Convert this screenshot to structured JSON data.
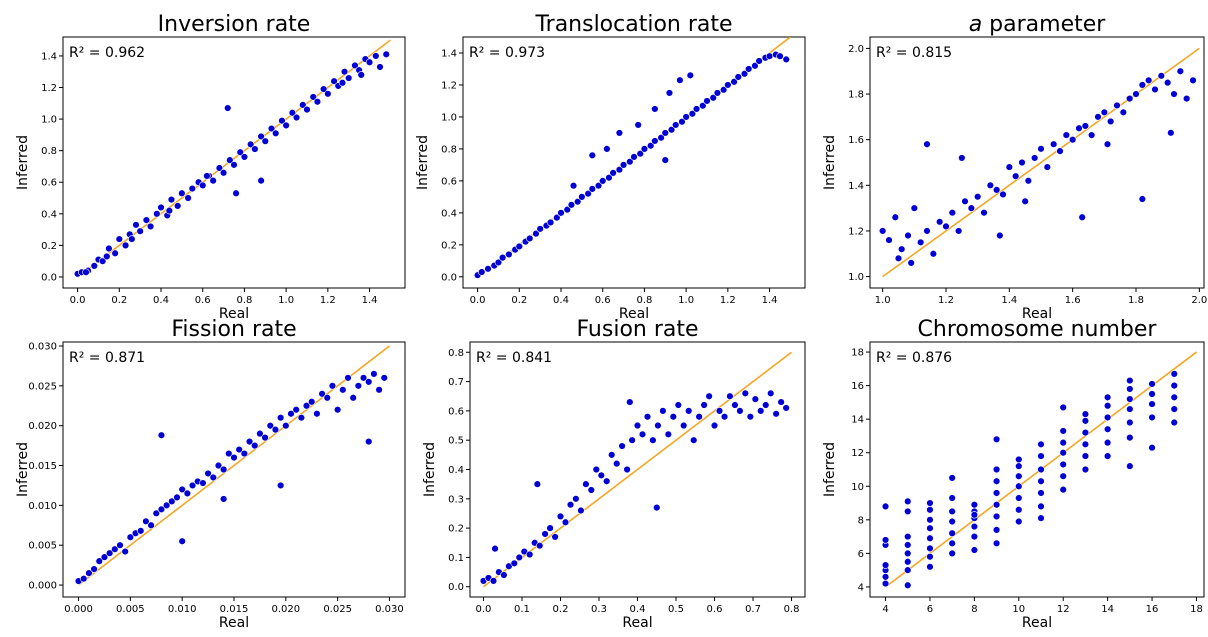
{
  "colors": {
    "points": "#0000d6",
    "point_edge": "#ffffff",
    "fit_line": "#f5a623",
    "axis": "#000000"
  },
  "chart_data": [
    {
      "type": "scatter",
      "title": "Inversion rate",
      "xlabel": "Real",
      "ylabel": "Inferred",
      "annotation": "R² = 0.962",
      "xlim": [
        -0.07,
        1.57
      ],
      "ylim": [
        -0.07,
        1.52
      ],
      "xticks": [
        0.0,
        0.2,
        0.4,
        0.6,
        0.8,
        1.0,
        1.2,
        1.4
      ],
      "xtick_labels": [
        "0.0",
        "0.2",
        "0.4",
        "0.6",
        "0.8",
        "1.0",
        "1.2",
        "1.4"
      ],
      "yticks": [
        0.0,
        0.2,
        0.4,
        0.6,
        0.8,
        1.0,
        1.2,
        1.4
      ],
      "ytick_labels": [
        "0.0",
        "0.2",
        "0.4",
        "0.6",
        "0.8",
        "1.0",
        "1.2",
        "1.4"
      ],
      "line": [
        [
          0.0,
          0.0
        ],
        [
          1.5,
          1.5
        ]
      ],
      "x": [
        0.0,
        0.02,
        0.05,
        0.08,
        0.1,
        0.12,
        0.15,
        0.18,
        0.2,
        0.23,
        0.25,
        0.28,
        0.3,
        0.33,
        0.35,
        0.38,
        0.4,
        0.43,
        0.45,
        0.48,
        0.5,
        0.53,
        0.55,
        0.58,
        0.6,
        0.63,
        0.65,
        0.68,
        0.7,
        0.73,
        0.75,
        0.78,
        0.8,
        0.83,
        0.85,
        0.88,
        0.9,
        0.93,
        0.95,
        0.98,
        1.0,
        1.03,
        1.05,
        1.08,
        1.1,
        1.13,
        1.15,
        1.18,
        1.2,
        1.23,
        1.25,
        1.28,
        1.3,
        1.33,
        1.35,
        1.38,
        1.4,
        1.43,
        1.45,
        1.48,
        0.72,
        0.88,
        0.76,
        1.27,
        0.04,
        0.14,
        0.26,
        0.44,
        0.62,
        1.36
      ],
      "y": [
        0.02,
        0.03,
        0.04,
        0.07,
        0.11,
        0.1,
        0.18,
        0.15,
        0.24,
        0.2,
        0.27,
        0.33,
        0.29,
        0.36,
        0.32,
        0.4,
        0.44,
        0.39,
        0.49,
        0.45,
        0.53,
        0.5,
        0.56,
        0.6,
        0.58,
        0.64,
        0.61,
        0.69,
        0.66,
        0.74,
        0.71,
        0.79,
        0.76,
        0.84,
        0.81,
        0.89,
        0.86,
        0.94,
        0.91,
        0.99,
        0.96,
        1.04,
        1.01,
        1.09,
        1.06,
        1.14,
        1.11,
        1.19,
        1.16,
        1.24,
        1.21,
        1.3,
        1.26,
        1.34,
        1.31,
        1.38,
        1.36,
        1.4,
        1.33,
        1.41,
        1.07,
        0.61,
        0.53,
        1.23,
        0.03,
        0.13,
        0.24,
        0.42,
        0.64,
        1.28
      ]
    },
    {
      "type": "scatter",
      "title": "Translocation rate",
      "xlabel": "Real",
      "ylabel": "Inferred",
      "annotation": "R² = 0.973",
      "xlim": [
        -0.07,
        1.57
      ],
      "ylim": [
        -0.07,
        1.5
      ],
      "xticks": [
        0.0,
        0.2,
        0.4,
        0.6,
        0.8,
        1.0,
        1.2,
        1.4
      ],
      "xtick_labels": [
        "0.0",
        "0.2",
        "0.4",
        "0.6",
        "0.8",
        "1.0",
        "1.2",
        "1.4"
      ],
      "yticks": [
        0.0,
        0.2,
        0.4,
        0.6,
        0.8,
        1.0,
        1.2,
        1.4
      ],
      "ytick_labels": [
        "0.0",
        "0.2",
        "0.4",
        "0.6",
        "0.8",
        "1.0",
        "1.2",
        "1.4"
      ],
      "line": [
        [
          0.0,
          0.0
        ],
        [
          1.5,
          1.5
        ]
      ],
      "x": [
        0.0,
        0.02,
        0.05,
        0.08,
        0.1,
        0.12,
        0.15,
        0.18,
        0.2,
        0.23,
        0.25,
        0.28,
        0.3,
        0.33,
        0.35,
        0.38,
        0.4,
        0.43,
        0.45,
        0.48,
        0.5,
        0.53,
        0.55,
        0.58,
        0.6,
        0.63,
        0.65,
        0.68,
        0.7,
        0.73,
        0.75,
        0.78,
        0.8,
        0.83,
        0.85,
        0.88,
        0.9,
        0.93,
        0.95,
        0.98,
        1.0,
        1.03,
        1.05,
        1.08,
        1.1,
        1.13,
        1.15,
        1.18,
        1.2,
        1.23,
        1.25,
        1.28,
        1.3,
        1.33,
        1.35,
        1.38,
        1.4,
        1.43,
        1.45,
        1.48,
        0.55,
        0.62,
        0.68,
        0.77,
        0.85,
        0.92,
        0.97,
        1.02,
        0.9,
        0.46
      ],
      "y": [
        0.01,
        0.03,
        0.05,
        0.07,
        0.09,
        0.12,
        0.14,
        0.17,
        0.19,
        0.22,
        0.24,
        0.27,
        0.3,
        0.32,
        0.34,
        0.37,
        0.4,
        0.42,
        0.45,
        0.47,
        0.5,
        0.52,
        0.55,
        0.57,
        0.6,
        0.62,
        0.65,
        0.67,
        0.7,
        0.72,
        0.75,
        0.77,
        0.8,
        0.82,
        0.85,
        0.87,
        0.9,
        0.92,
        0.95,
        0.97,
        1.0,
        1.02,
        1.05,
        1.07,
        1.1,
        1.12,
        1.15,
        1.17,
        1.2,
        1.22,
        1.25,
        1.27,
        1.3,
        1.32,
        1.35,
        1.37,
        1.38,
        1.39,
        1.38,
        1.36,
        0.76,
        0.8,
        0.9,
        0.95,
        1.05,
        1.15,
        1.23,
        1.26,
        0.73,
        0.57
      ]
    },
    {
      "type": "scatter",
      "title": "a parameter",
      "title_italic_prefix": "a",
      "title_rest": " parameter",
      "xlabel": "Real",
      "ylabel": "Inferred",
      "annotation": "R² = 0.815",
      "xlim": [
        0.96,
        2.04
      ],
      "ylim": [
        0.95,
        2.05
      ],
      "xticks": [
        1.0,
        1.2,
        1.4,
        1.6,
        1.8,
        2.0
      ],
      "xtick_labels": [
        "1.0",
        "1.2",
        "1.4",
        "1.6",
        "1.8",
        "2.0"
      ],
      "yticks": [
        1.0,
        1.2,
        1.4,
        1.6,
        1.8,
        2.0
      ],
      "ytick_labels": [
        "1.0",
        "1.2",
        "1.4",
        "1.6",
        "1.8",
        "2.0"
      ],
      "line": [
        [
          1.0,
          1.0
        ],
        [
          2.0,
          2.0
        ]
      ],
      "x": [
        1.0,
        1.02,
        1.04,
        1.06,
        1.08,
        1.1,
        1.12,
        1.14,
        1.16,
        1.18,
        1.2,
        1.22,
        1.24,
        1.26,
        1.28,
        1.3,
        1.32,
        1.34,
        1.36,
        1.38,
        1.4,
        1.42,
        1.44,
        1.46,
        1.48,
        1.5,
        1.52,
        1.54,
        1.56,
        1.58,
        1.6,
        1.62,
        1.64,
        1.66,
        1.68,
        1.7,
        1.72,
        1.74,
        1.76,
        1.78,
        1.8,
        1.82,
        1.84,
        1.86,
        1.88,
        1.9,
        1.92,
        1.94,
        1.96,
        1.98,
        1.14,
        1.25,
        1.37,
        1.63,
        1.82,
        1.91,
        1.05,
        1.09,
        1.45,
        1.71
      ],
      "y": [
        1.2,
        1.16,
        1.26,
        1.12,
        1.18,
        1.3,
        1.15,
        1.2,
        1.1,
        1.24,
        1.22,
        1.28,
        1.2,
        1.33,
        1.3,
        1.35,
        1.28,
        1.4,
        1.38,
        1.36,
        1.48,
        1.44,
        1.5,
        1.42,
        1.52,
        1.56,
        1.48,
        1.58,
        1.55,
        1.62,
        1.6,
        1.65,
        1.66,
        1.62,
        1.7,
        1.72,
        1.68,
        1.75,
        1.72,
        1.78,
        1.8,
        1.84,
        1.86,
        1.82,
        1.88,
        1.85,
        1.8,
        1.9,
        1.78,
        1.86,
        1.58,
        1.52,
        1.18,
        1.26,
        1.34,
        1.63,
        1.08,
        1.06,
        1.33,
        1.58
      ]
    },
    {
      "type": "scatter",
      "title": "Fission rate",
      "xlabel": "Real",
      "ylabel": "Inferred",
      "annotation": "R² = 0.871",
      "xlim": [
        -0.0015,
        0.0315
      ],
      "ylim": [
        -0.0015,
        0.0305
      ],
      "xticks": [
        0.0,
        0.005,
        0.01,
        0.015,
        0.02,
        0.025,
        0.03
      ],
      "xtick_labels": [
        "0.000",
        "0.005",
        "0.010",
        "0.015",
        "0.020",
        "0.025",
        "0.030"
      ],
      "yticks": [
        0.0,
        0.005,
        0.01,
        0.015,
        0.02,
        0.025,
        0.03
      ],
      "ytick_labels": [
        "0.000",
        "0.005",
        "0.010",
        "0.015",
        "0.020",
        "0.025",
        "0.030"
      ],
      "line": [
        [
          0.0,
          0.0
        ],
        [
          0.03,
          0.03
        ]
      ],
      "x": [
        0.0,
        0.0005,
        0.001,
        0.0015,
        0.002,
        0.0025,
        0.003,
        0.0035,
        0.004,
        0.0045,
        0.005,
        0.0055,
        0.006,
        0.0065,
        0.007,
        0.0075,
        0.008,
        0.0085,
        0.009,
        0.0095,
        0.01,
        0.0105,
        0.011,
        0.0115,
        0.012,
        0.0125,
        0.013,
        0.0135,
        0.014,
        0.0145,
        0.015,
        0.0155,
        0.016,
        0.0165,
        0.017,
        0.0175,
        0.018,
        0.0185,
        0.019,
        0.0195,
        0.02,
        0.0205,
        0.021,
        0.0215,
        0.022,
        0.0225,
        0.023,
        0.0235,
        0.024,
        0.0245,
        0.025,
        0.0255,
        0.026,
        0.0265,
        0.027,
        0.0275,
        0.028,
        0.0285,
        0.029,
        0.0295,
        0.008,
        0.014,
        0.0195,
        0.028,
        0.01
      ],
      "y": [
        0.0005,
        0.0008,
        0.0015,
        0.002,
        0.003,
        0.0035,
        0.004,
        0.0045,
        0.005,
        0.0042,
        0.006,
        0.0065,
        0.0068,
        0.008,
        0.0075,
        0.009,
        0.0095,
        0.01,
        0.0105,
        0.011,
        0.012,
        0.0115,
        0.0125,
        0.013,
        0.0128,
        0.014,
        0.0135,
        0.015,
        0.0145,
        0.0165,
        0.016,
        0.017,
        0.0165,
        0.018,
        0.0175,
        0.019,
        0.0185,
        0.02,
        0.0195,
        0.021,
        0.02,
        0.0215,
        0.022,
        0.021,
        0.0225,
        0.023,
        0.0215,
        0.024,
        0.0235,
        0.025,
        0.022,
        0.0245,
        0.026,
        0.0235,
        0.025,
        0.026,
        0.0255,
        0.0265,
        0.0245,
        0.026,
        0.0188,
        0.0108,
        0.0125,
        0.018,
        0.0055
      ]
    },
    {
      "type": "scatter",
      "title": "Fusion rate",
      "xlabel": "Real",
      "ylabel": "Inferred",
      "annotation": "R² = 0.841",
      "xlim": [
        -0.035,
        0.835
      ],
      "ylim": [
        -0.035,
        0.835
      ],
      "xticks": [
        0.0,
        0.1,
        0.2,
        0.3,
        0.4,
        0.5,
        0.6,
        0.7,
        0.8
      ],
      "xtick_labels": [
        "0.0",
        "0.1",
        "0.2",
        "0.3",
        "0.4",
        "0.5",
        "0.6",
        "0.7",
        "0.8"
      ],
      "yticks": [
        0.0,
        0.1,
        0.2,
        0.3,
        0.4,
        0.5,
        0.6,
        0.7,
        0.8
      ],
      "ytick_labels": [
        "0.0",
        "0.1",
        "0.2",
        "0.3",
        "0.4",
        "0.5",
        "0.6",
        "0.7",
        "0.8"
      ],
      "line": [
        [
          0.0,
          0.0
        ],
        [
          0.8,
          0.8
        ]
      ],
      "x": [
        0.0,
        0.013,
        0.026,
        0.04,
        0.053,
        0.066,
        0.08,
        0.093,
        0.106,
        0.12,
        0.133,
        0.146,
        0.16,
        0.173,
        0.186,
        0.2,
        0.213,
        0.226,
        0.24,
        0.253,
        0.266,
        0.28,
        0.293,
        0.306,
        0.32,
        0.333,
        0.346,
        0.36,
        0.373,
        0.386,
        0.4,
        0.413,
        0.426,
        0.44,
        0.453,
        0.466,
        0.48,
        0.493,
        0.506,
        0.52,
        0.533,
        0.546,
        0.56,
        0.573,
        0.586,
        0.6,
        0.613,
        0.626,
        0.64,
        0.653,
        0.666,
        0.68,
        0.693,
        0.706,
        0.72,
        0.733,
        0.746,
        0.76,
        0.773,
        0.786,
        0.03,
        0.14,
        0.38,
        0.45
      ],
      "y": [
        0.02,
        0.03,
        0.02,
        0.05,
        0.04,
        0.07,
        0.08,
        0.1,
        0.12,
        0.11,
        0.15,
        0.14,
        0.18,
        0.2,
        0.17,
        0.24,
        0.22,
        0.28,
        0.3,
        0.26,
        0.35,
        0.33,
        0.4,
        0.38,
        0.36,
        0.45,
        0.42,
        0.48,
        0.4,
        0.5,
        0.55,
        0.52,
        0.58,
        0.5,
        0.55,
        0.6,
        0.52,
        0.58,
        0.62,
        0.55,
        0.6,
        0.5,
        0.58,
        0.62,
        0.65,
        0.55,
        0.6,
        0.58,
        0.65,
        0.62,
        0.6,
        0.66,
        0.58,
        0.64,
        0.6,
        0.62,
        0.66,
        0.59,
        0.63,
        0.61,
        0.13,
        0.35,
        0.63,
        0.27
      ]
    },
    {
      "type": "scatter",
      "title": "Chromosome number",
      "xlabel": "Real",
      "ylabel": "Inferred",
      "annotation": "R² = 0.876",
      "xlim": [
        3.3,
        18.7
      ],
      "ylim": [
        3.4,
        18.6
      ],
      "xticks": [
        4,
        6,
        8,
        10,
        12,
        14,
        16,
        18
      ],
      "xtick_labels": [
        "4",
        "6",
        "8",
        "10",
        "12",
        "14",
        "16",
        "18"
      ],
      "yticks": [
        4,
        6,
        8,
        10,
        12,
        14,
        16,
        18
      ],
      "ytick_labels": [
        "4",
        "6",
        "8",
        "10",
        "12",
        "14",
        "16",
        "18"
      ],
      "line": [
        [
          4,
          4
        ],
        [
          18,
          18
        ]
      ],
      "x": [
        4,
        4,
        4,
        4,
        4,
        4,
        4,
        5,
        5,
        5,
        5,
        5,
        5,
        5,
        5,
        6,
        6,
        6,
        6,
        6,
        6,
        6,
        6,
        7,
        7,
        7,
        7,
        7,
        7,
        7,
        8,
        8,
        8,
        8,
        8,
        8,
        8,
        9,
        9,
        9,
        9,
        9,
        9,
        9,
        9,
        10,
        10,
        10,
        10,
        10,
        10,
        10,
        11,
        11,
        11,
        11,
        11,
        11,
        11,
        12,
        12,
        12,
        12,
        12,
        12,
        12,
        13,
        13,
        13,
        13,
        13,
        13,
        14,
        14,
        14,
        14,
        14,
        14,
        15,
        15,
        15,
        15,
        15,
        15,
        15,
        16,
        16,
        16,
        16,
        16,
        17,
        17,
        17,
        17,
        17
      ],
      "y": [
        4.2,
        4.6,
        5.0,
        5.3,
        6.5,
        6.8,
        8.8,
        4.1,
        5.0,
        5.5,
        6.0,
        6.5,
        7.0,
        8.5,
        9.1,
        5.2,
        5.8,
        6.3,
        6.9,
        7.5,
        8.0,
        8.6,
        9.0,
        6.0,
        6.6,
        7.2,
        7.9,
        8.5,
        9.3,
        10.5,
        6.2,
        7.0,
        7.6,
        8.1,
        8.5,
        8.9,
        8.3,
        6.6,
        7.4,
        8.2,
        8.9,
        9.6,
        10.3,
        11.0,
        12.8,
        7.9,
        8.6,
        9.3,
        10.0,
        10.6,
        11.2,
        11.6,
        8.1,
        8.8,
        9.6,
        10.3,
        11.0,
        11.8,
        12.5,
        9.8,
        10.6,
        11.3,
        12.0,
        12.6,
        13.3,
        14.7,
        11.0,
        11.8,
        12.5,
        13.2,
        13.9,
        14.3,
        11.8,
        12.6,
        13.4,
        14.1,
        14.8,
        15.3,
        11.2,
        12.9,
        13.8,
        14.6,
        15.2,
        15.8,
        16.3,
        12.3,
        14.1,
        14.9,
        15.5,
        16.1,
        13.8,
        14.6,
        15.3,
        16.0,
        16.7
      ]
    }
  ]
}
